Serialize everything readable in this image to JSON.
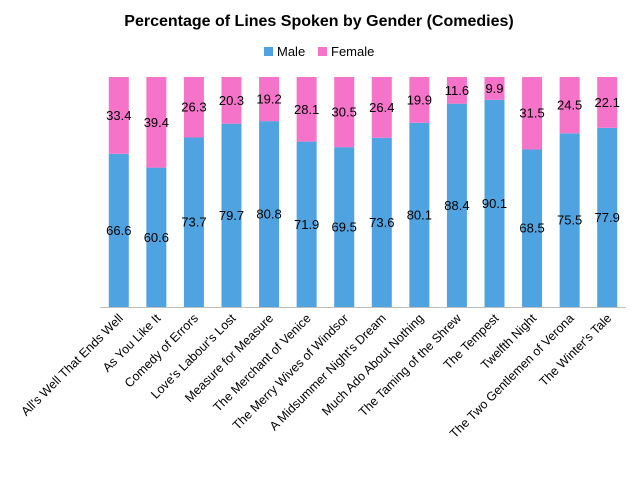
{
  "chart_data": {
    "type": "bar",
    "stacked": true,
    "title": "Percentage of Lines Spoken by Gender (Comedies)",
    "xlabel": "",
    "ylabel": "",
    "ylim": [
      0,
      100
    ],
    "grid": false,
    "legend_position": "top",
    "categories": [
      "All's Well That Ends Well",
      "As You Like It",
      "Comedy of Errors",
      "Love's Labour's Lost",
      "Measure for Measure",
      "The Merchant of Venice",
      "The Merry Wives of Windsor",
      "A Midsummer Night's Dream",
      "Much Ado About Nothing",
      "The Taming of the Shrew",
      "The Tempest",
      "Twelfth Night",
      "The Two Gentlemen of Verona",
      "The Winter's Tale"
    ],
    "series": [
      {
        "name": "Male",
        "color": "#4fa3e0",
        "values": [
          66.6,
          60.6,
          73.7,
          79.7,
          80.8,
          71.9,
          69.5,
          73.6,
          80.1,
          88.4,
          90.1,
          68.5,
          75.5,
          77.9
        ]
      },
      {
        "name": "Female",
        "color": "#f573c8",
        "values": [
          33.4,
          39.4,
          26.3,
          20.3,
          19.2,
          28.1,
          30.5,
          26.4,
          19.9,
          11.6,
          9.9,
          31.5,
          24.5,
          22.1
        ]
      }
    ]
  }
}
